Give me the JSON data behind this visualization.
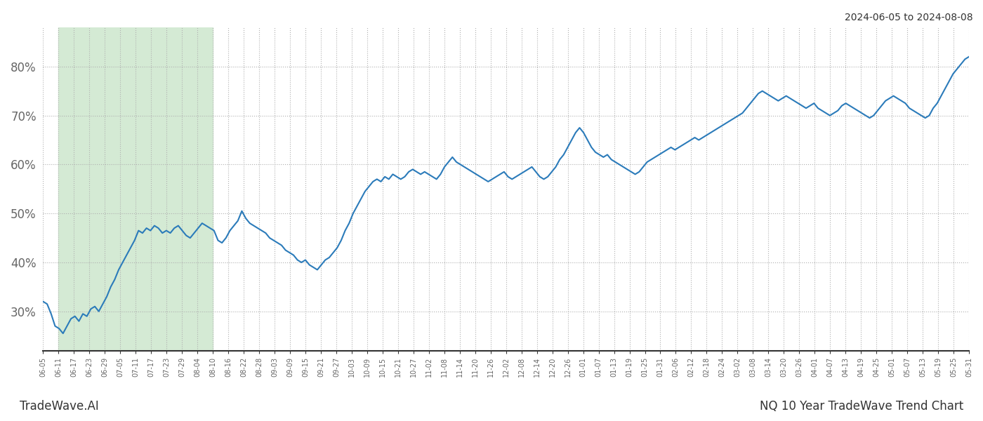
{
  "title_right": "2024-06-05 to 2024-08-08",
  "footer_left": "TradeWave.AI",
  "footer_right": "NQ 10 Year TradeWave Trend Chart",
  "line_color": "#2b7bba",
  "line_width": 1.5,
  "background_color": "#ffffff",
  "grid_color": "#b0b0b0",
  "highlight_color": "#d4ead4",
  "ylim": [
    22,
    88
  ],
  "yticks": [
    30,
    40,
    50,
    60,
    70,
    80
  ],
  "ytick_labels": [
    "30%",
    "40%",
    "50%",
    "60%",
    "70%",
    "80%"
  ],
  "highlight_x_start_label": "06-11",
  "highlight_x_end_label": "08-10",
  "x_labels": [
    "06-05",
    "06-11",
    "06-17",
    "06-23",
    "06-29",
    "07-05",
    "07-11",
    "07-17",
    "07-23",
    "07-29",
    "08-04",
    "08-10",
    "08-16",
    "08-22",
    "08-28",
    "09-03",
    "09-09",
    "09-15",
    "09-21",
    "09-27",
    "10-03",
    "10-09",
    "10-15",
    "10-21",
    "10-27",
    "11-02",
    "11-08",
    "11-14",
    "11-20",
    "11-26",
    "12-02",
    "12-08",
    "12-14",
    "12-20",
    "12-26",
    "01-01",
    "01-07",
    "01-13",
    "01-19",
    "01-25",
    "01-31",
    "02-06",
    "02-12",
    "02-18",
    "02-24",
    "03-02",
    "03-08",
    "03-14",
    "03-20",
    "03-26",
    "04-01",
    "04-07",
    "04-13",
    "04-19",
    "04-25",
    "05-01",
    "05-07",
    "05-13",
    "05-19",
    "05-25",
    "05-31"
  ],
  "y_values": [
    32.0,
    31.5,
    29.5,
    27.0,
    26.5,
    25.5,
    27.0,
    28.5,
    29.0,
    28.0,
    29.5,
    29.0,
    30.5,
    31.0,
    30.0,
    31.5,
    33.0,
    35.0,
    36.5,
    38.5,
    40.0,
    41.5,
    43.0,
    44.5,
    46.5,
    46.0,
    47.0,
    46.5,
    47.5,
    47.0,
    46.0,
    46.5,
    46.0,
    47.0,
    47.5,
    46.5,
    45.5,
    45.0,
    46.0,
    47.0,
    48.0,
    47.5,
    47.0,
    46.5,
    44.5,
    44.0,
    45.0,
    46.5,
    47.5,
    48.5,
    50.5,
    49.0,
    48.0,
    47.5,
    47.0,
    46.5,
    46.0,
    45.0,
    44.5,
    44.0,
    43.5,
    42.5,
    42.0,
    41.5,
    40.5,
    40.0,
    40.5,
    39.5,
    39.0,
    38.5,
    39.5,
    40.5,
    41.0,
    42.0,
    43.0,
    44.5,
    46.5,
    48.0,
    50.0,
    51.5,
    53.0,
    54.5,
    55.5,
    56.5,
    57.0,
    56.5,
    57.5,
    57.0,
    58.0,
    57.5,
    57.0,
    57.5,
    58.5,
    59.0,
    58.5,
    58.0,
    58.5,
    58.0,
    57.5,
    57.0,
    58.0,
    59.5,
    60.5,
    61.5,
    60.5,
    60.0,
    59.5,
    59.0,
    58.5,
    58.0,
    57.5,
    57.0,
    56.5,
    57.0,
    57.5,
    58.0,
    58.5,
    57.5,
    57.0,
    57.5,
    58.0,
    58.5,
    59.0,
    59.5,
    58.5,
    57.5,
    57.0,
    57.5,
    58.5,
    59.5,
    61.0,
    62.0,
    63.5,
    65.0,
    66.5,
    67.5,
    66.5,
    65.0,
    63.5,
    62.5,
    62.0,
    61.5,
    62.0,
    61.0,
    60.5,
    60.0,
    59.5,
    59.0,
    58.5,
    58.0,
    58.5,
    59.5,
    60.5,
    61.0,
    61.5,
    62.0,
    62.5,
    63.0,
    63.5,
    63.0,
    63.5,
    64.0,
    64.5,
    65.0,
    65.5,
    65.0,
    65.5,
    66.0,
    66.5,
    67.0,
    67.5,
    68.0,
    68.5,
    69.0,
    69.5,
    70.0,
    70.5,
    71.5,
    72.5,
    73.5,
    74.5,
    75.0,
    74.5,
    74.0,
    73.5,
    73.0,
    73.5,
    74.0,
    73.5,
    73.0,
    72.5,
    72.0,
    71.5,
    72.0,
    72.5,
    71.5,
    71.0,
    70.5,
    70.0,
    70.5,
    71.0,
    72.0,
    72.5,
    72.0,
    71.5,
    71.0,
    70.5,
    70.0,
    69.5,
    70.0,
    71.0,
    72.0,
    73.0,
    73.5,
    74.0,
    73.5,
    73.0,
    72.5,
    71.5,
    71.0,
    70.5,
    70.0,
    69.5,
    70.0,
    71.5,
    72.5,
    74.0,
    75.5,
    77.0,
    78.5,
    79.5,
    80.5,
    81.5,
    82.0
  ]
}
